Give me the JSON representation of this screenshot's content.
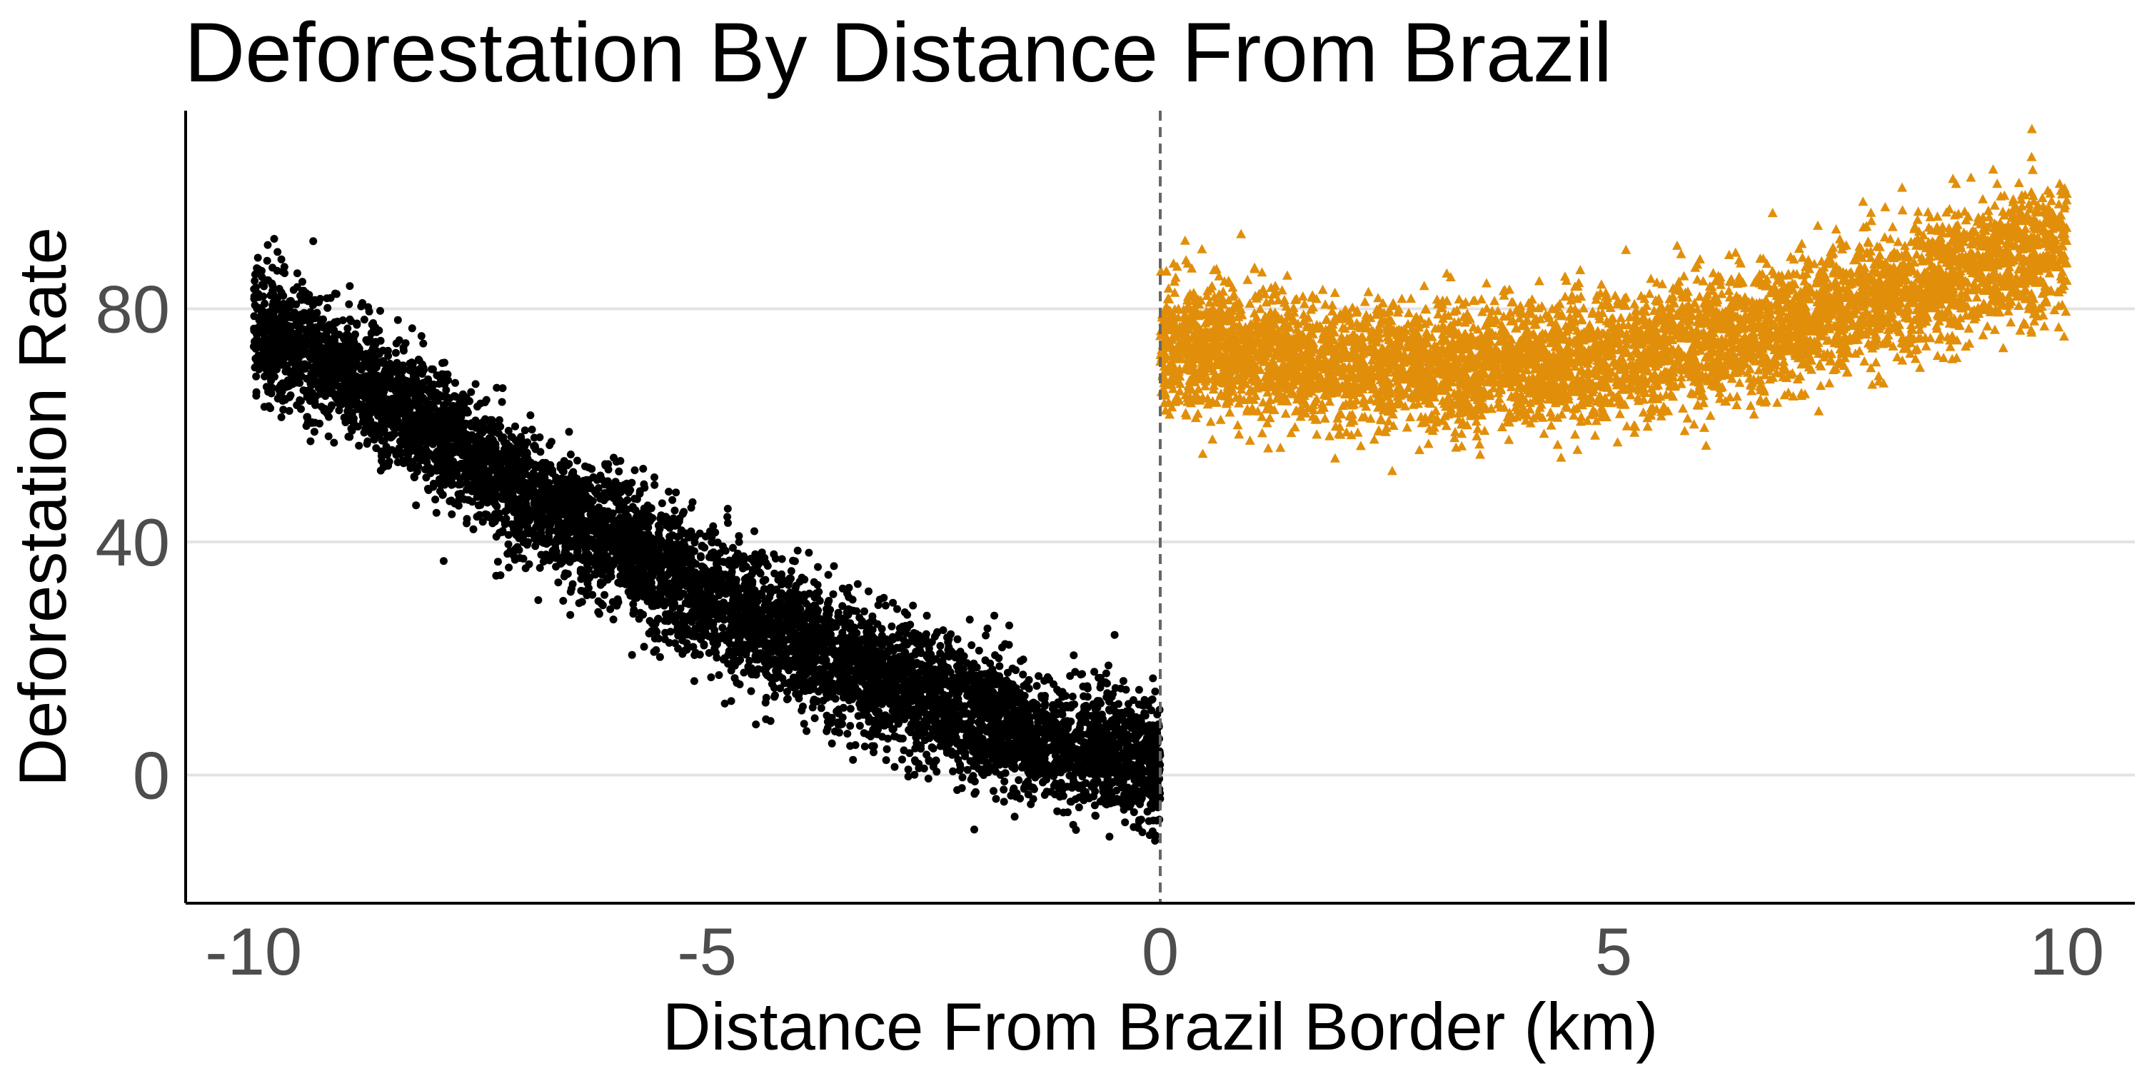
{
  "chart_data": {
    "type": "scatter",
    "title": "Deforestation By Distance From Brazil",
    "xlabel": "Distance From Brazil Border (km)",
    "ylabel": "Deforestation Rate",
    "xlim": [
      -10.75,
      10.75
    ],
    "ylim": [
      -22,
      114
    ],
    "x_ticks": [
      -10,
      -5,
      0,
      5,
      10
    ],
    "x_tick_labels": [
      "-10",
      "-5",
      "0",
      "5",
      "10"
    ],
    "y_ticks": [
      0,
      40,
      80
    ],
    "y_tick_labels": [
      "0",
      "40",
      "80"
    ],
    "grid": {
      "horizontal_major": true,
      "vertical": false
    },
    "cutoff_line": {
      "x": 0,
      "style": "dashed",
      "color": "#666666"
    },
    "series": [
      {
        "marker": "circle",
        "color": "#000000",
        "x_range": [
          -10,
          0
        ],
        "trend": [
          {
            "x": -10,
            "y": 77
          },
          {
            "x": -9,
            "y": 69
          },
          {
            "x": -8,
            "y": 59
          },
          {
            "x": -7,
            "y": 49
          },
          {
            "x": -6,
            "y": 40
          },
          {
            "x": -5,
            "y": 31
          },
          {
            "x": -4,
            "y": 23
          },
          {
            "x": -3,
            "y": 16
          },
          {
            "x": -2,
            "y": 10
          },
          {
            "x": -1,
            "y": 5
          },
          {
            "x": 0,
            "y": 2
          }
        ],
        "spread": 5.5,
        "points": 7000
      },
      {
        "marker": "triangle",
        "color": "#E18F0B",
        "x_range": [
          0,
          10
        ],
        "trend": [
          {
            "x": 0,
            "y": 74
          },
          {
            "x": 1,
            "y": 72
          },
          {
            "x": 2,
            "y": 70.5
          },
          {
            "x": 3,
            "y": 70
          },
          {
            "x": 4,
            "y": 70
          },
          {
            "x": 5,
            "y": 71.5
          },
          {
            "x": 6,
            "y": 74
          },
          {
            "x": 7,
            "y": 77.5
          },
          {
            "x": 8,
            "y": 82
          },
          {
            "x": 9,
            "y": 87
          },
          {
            "x": 10,
            "y": 92
          }
        ],
        "spread": 5.5,
        "points": 5500
      }
    ]
  }
}
